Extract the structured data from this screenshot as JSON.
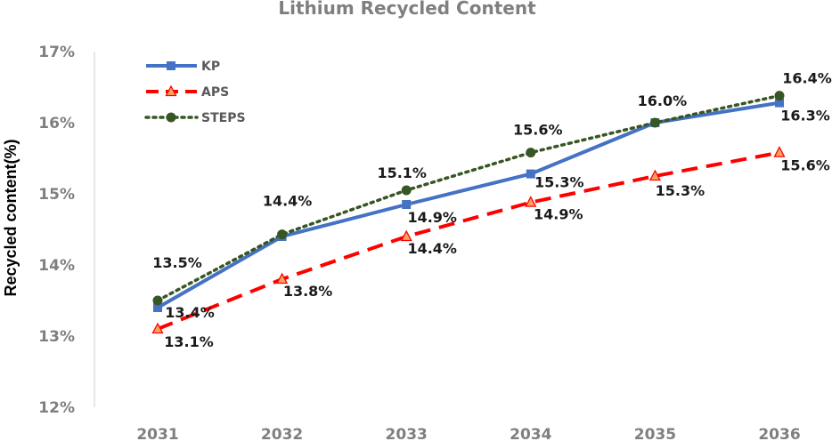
{
  "chart_data": {
    "type": "line",
    "title": "Lithium Recycled Content",
    "xlabel": "",
    "ylabel": "Recycled content(%)",
    "categories": [
      "2031",
      "2032",
      "2033",
      "2034",
      "2035",
      "2036"
    ],
    "ylim": [
      12,
      17
    ],
    "yticks": [
      "12%",
      "13%",
      "14%",
      "15%",
      "16%",
      "17%"
    ],
    "legend_position": "top-left",
    "series": [
      {
        "name": "KP",
        "values": [
          13.4,
          14.4,
          14.85,
          15.28,
          16.0,
          16.28
        ],
        "labels": [
          "13.4%",
          "",
          "14.9%",
          "15.3%",
          "",
          "16.3%"
        ],
        "color": "#4472c4",
        "line_style": "solid",
        "marker": "square"
      },
      {
        "name": "APS",
        "values": [
          13.1,
          13.8,
          14.4,
          14.88,
          15.25,
          15.58
        ],
        "labels": [
          "13.1%",
          "13.8%",
          "14.4%",
          "14.9%",
          "15.3%",
          "15.6%"
        ],
        "color": "#ff0000",
        "line_style": "dashed",
        "marker": "triangle"
      },
      {
        "name": "STEPS",
        "values": [
          13.5,
          14.43,
          15.05,
          15.58,
          16.0,
          16.38
        ],
        "labels": [
          "13.5%",
          "14.4%",
          "15.1%",
          "15.6%",
          "16.0%",
          "16.4%"
        ],
        "color": "#375623",
        "line_style": "dotted",
        "marker": "circle"
      }
    ]
  }
}
